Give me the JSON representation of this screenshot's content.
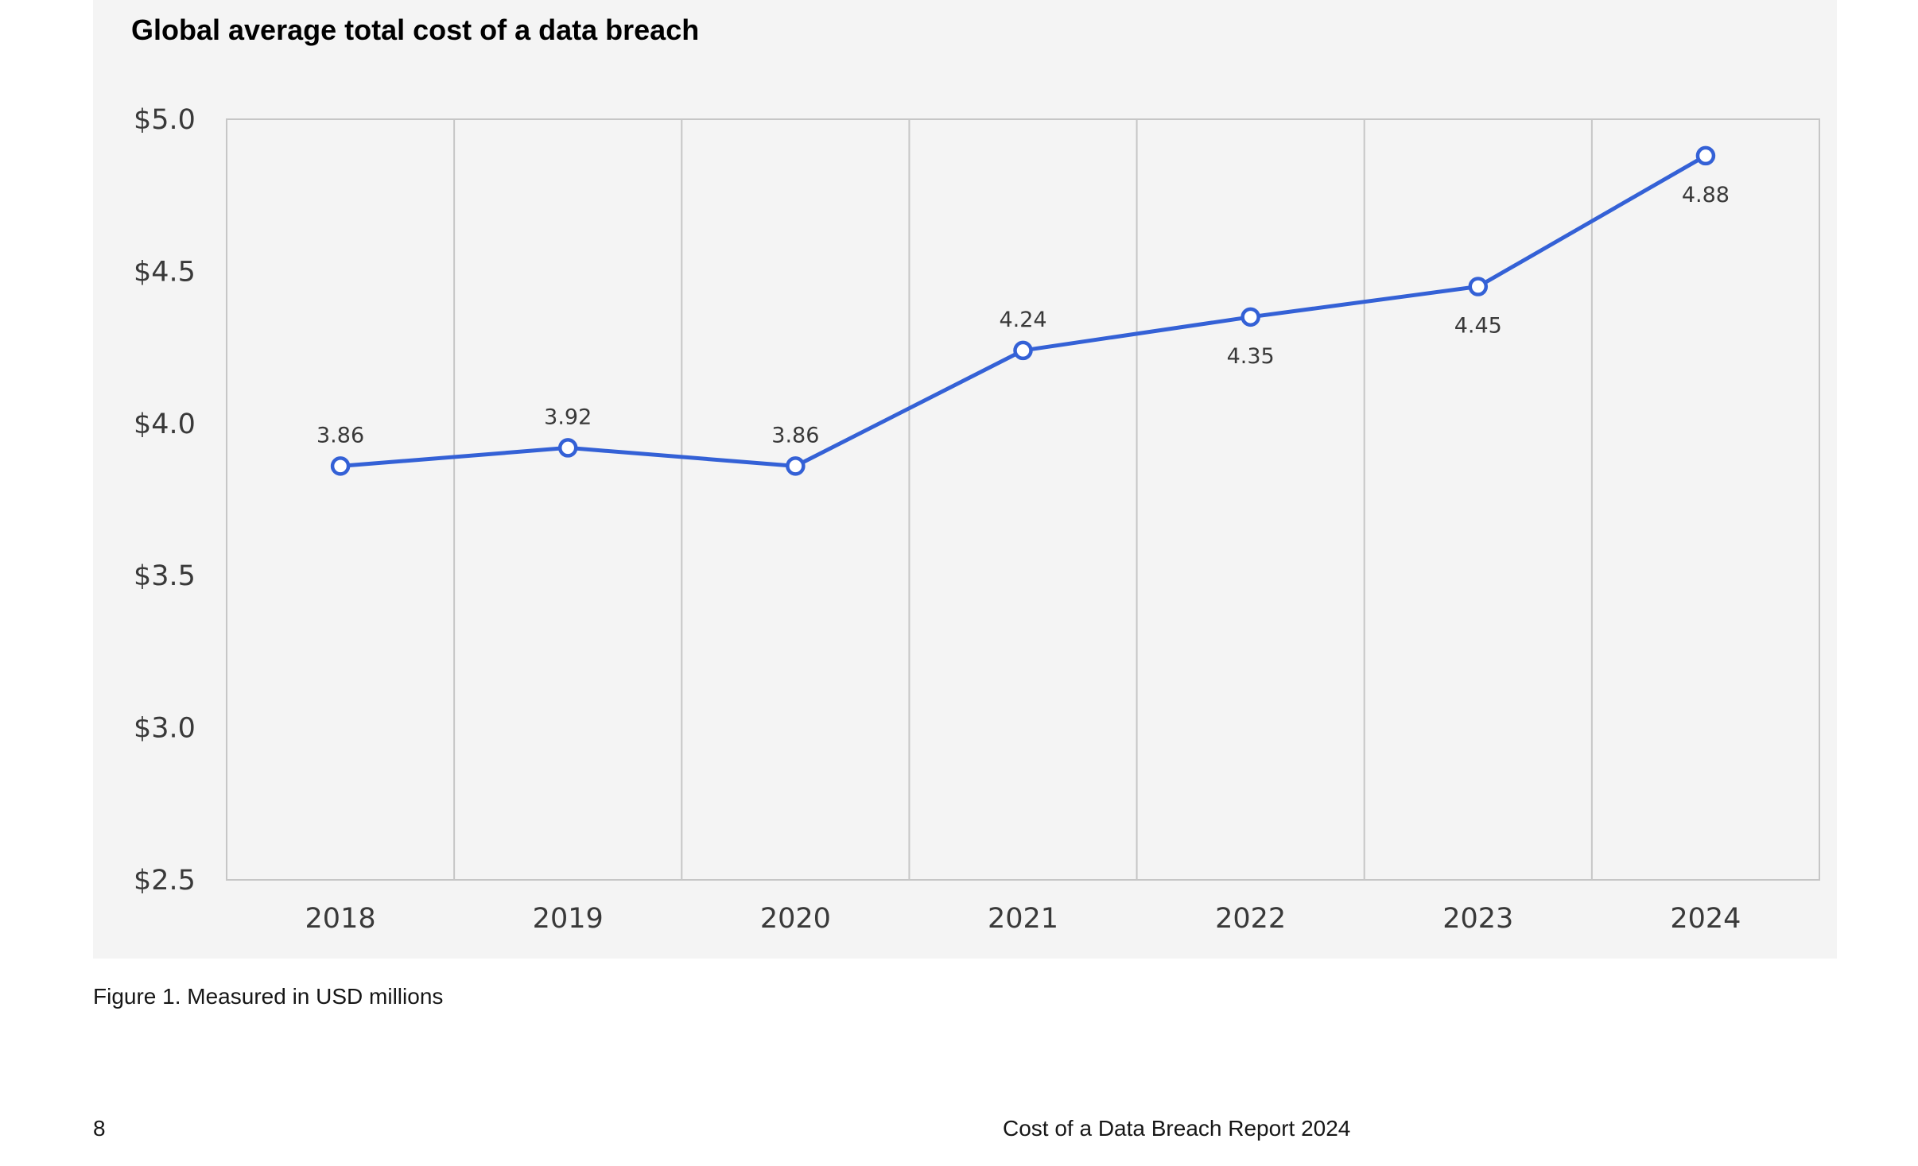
{
  "chart_data": {
    "type": "line",
    "title": "Global average total cost of a data breach",
    "xlabel": "",
    "ylabel": "",
    "categories": [
      "2018",
      "2019",
      "2020",
      "2021",
      "2022",
      "2023",
      "2024"
    ],
    "series": [
      {
        "values": [
          3.86,
          3.92,
          3.86,
          4.24,
          4.35,
          4.45,
          4.88
        ],
        "color": "#3461d6",
        "marker": "open-circle"
      }
    ],
    "data_labels": [
      "3.86",
      "3.92",
      "3.86",
      "4.24",
      "4.35",
      "4.45",
      "4.88"
    ],
    "data_label_positions": [
      "above",
      "above",
      "above",
      "above",
      "below",
      "below",
      "below"
    ],
    "ylim": [
      2.5,
      5.0
    ],
    "yticks": [
      2.5,
      3.0,
      3.5,
      4.0,
      4.5,
      5.0
    ],
    "ytick_labels": [
      "$2.5",
      "$3.0",
      "$3.5",
      "$4.0",
      "$4.5",
      "$5.0"
    ],
    "grid": "vertical",
    "legend": "none"
  },
  "caption": "Figure 1. Measured in USD millions",
  "footer": {
    "page_number": "8",
    "report_title": "Cost of a Data Breach Report 2024"
  },
  "colors": {
    "panel_background": "#f4f4f4",
    "line": "#3461d6",
    "grid": "#c6c6c6",
    "text": "#393939"
  }
}
